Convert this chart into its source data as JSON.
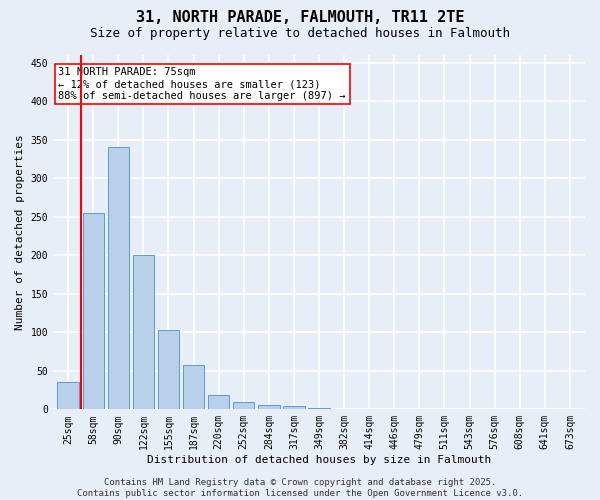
{
  "title": "31, NORTH PARADE, FALMOUTH, TR11 2TE",
  "subtitle": "Size of property relative to detached houses in Falmouth",
  "xlabel": "Distribution of detached houses by size in Falmouth",
  "ylabel": "Number of detached properties",
  "bin_labels": [
    "25sqm",
    "58sqm",
    "90sqm",
    "122sqm",
    "155sqm",
    "187sqm",
    "220sqm",
    "252sqm",
    "284sqm",
    "317sqm",
    "349sqm",
    "382sqm",
    "414sqm",
    "446sqm",
    "479sqm",
    "511sqm",
    "543sqm",
    "576sqm",
    "608sqm",
    "641sqm",
    "673sqm"
  ],
  "bar_heights": [
    35,
    255,
    340,
    200,
    103,
    57,
    18,
    10,
    6,
    4,
    2,
    1,
    1,
    0,
    0,
    0,
    0,
    0,
    0,
    0,
    0
  ],
  "bar_color": "#b8d0ea",
  "bar_edge_color": "#5b9bd5",
  "vline_color": "red",
  "vline_x_pos": 0.52,
  "annotation_text": "31 NORTH PARADE: 75sqm\n← 12% of detached houses are smaller (123)\n88% of semi-detached houses are larger (897) →",
  "annotation_box_color": "white",
  "annotation_box_edge_color": "red",
  "ylim": [
    0,
    460
  ],
  "yticks": [
    0,
    50,
    100,
    150,
    200,
    250,
    300,
    350,
    400,
    450
  ],
  "footer_text": "Contains HM Land Registry data © Crown copyright and database right 2025.\nContains public sector information licensed under the Open Government Licence v3.0.",
  "background_color": "#e8eef8",
  "grid_color": "white",
  "title_fontsize": 11,
  "subtitle_fontsize": 9,
  "axis_label_fontsize": 8,
  "tick_fontsize": 7,
  "annotation_fontsize": 7.5,
  "footer_fontsize": 6.5
}
